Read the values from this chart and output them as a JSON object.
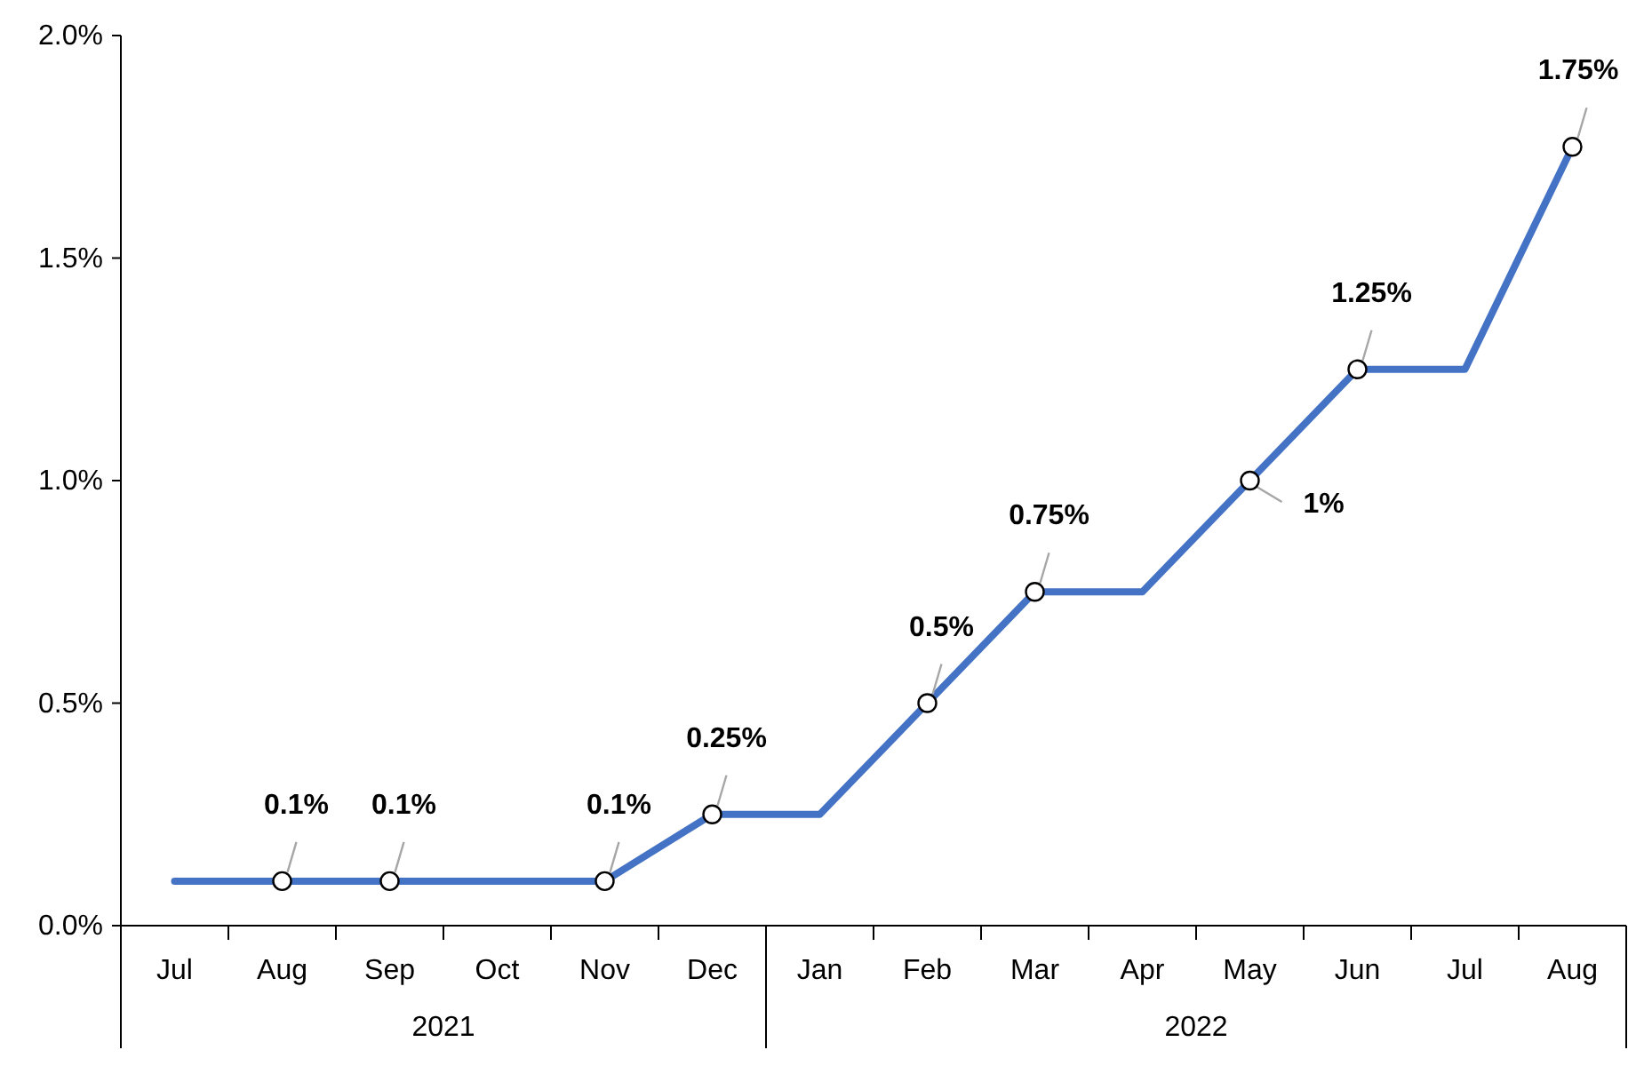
{
  "chart_data": {
    "type": "line",
    "categories": [
      "Jul",
      "Aug",
      "Sep",
      "Oct",
      "Nov",
      "Dec",
      "Jan",
      "Feb",
      "Mar",
      "Apr",
      "May",
      "Jun",
      "Jul",
      "Aug"
    ],
    "series": [
      {
        "color": "#4472c4",
        "values": [
          0.1,
          0.1,
          0.1,
          0.1,
          0.1,
          0.25,
          0.25,
          0.5,
          0.75,
          0.75,
          1,
          1.25,
          1.25,
          1.75
        ],
        "value_labels": [
          null,
          "0.1%",
          "0.1%",
          null,
          "0.1%",
          "0.25%",
          null,
          "0.5%",
          "0.75%",
          null,
          "1%",
          "1.25%",
          null,
          "1.75%"
        ]
      }
    ],
    "ylim": [
      0,
      2
    ],
    "yticks": [
      {
        "value": 0,
        "label": "0.0%"
      },
      {
        "value": 0.5,
        "label": "0.5%"
      },
      {
        "value": 1,
        "label": "1.0%"
      },
      {
        "value": 1.5,
        "label": "1.5%"
      },
      {
        "value": 2,
        "label": "2.0%"
      }
    ],
    "annotations": [
      "2021",
      "2022"
    ],
    "marker": "circle",
    "line_style": "solid"
  }
}
